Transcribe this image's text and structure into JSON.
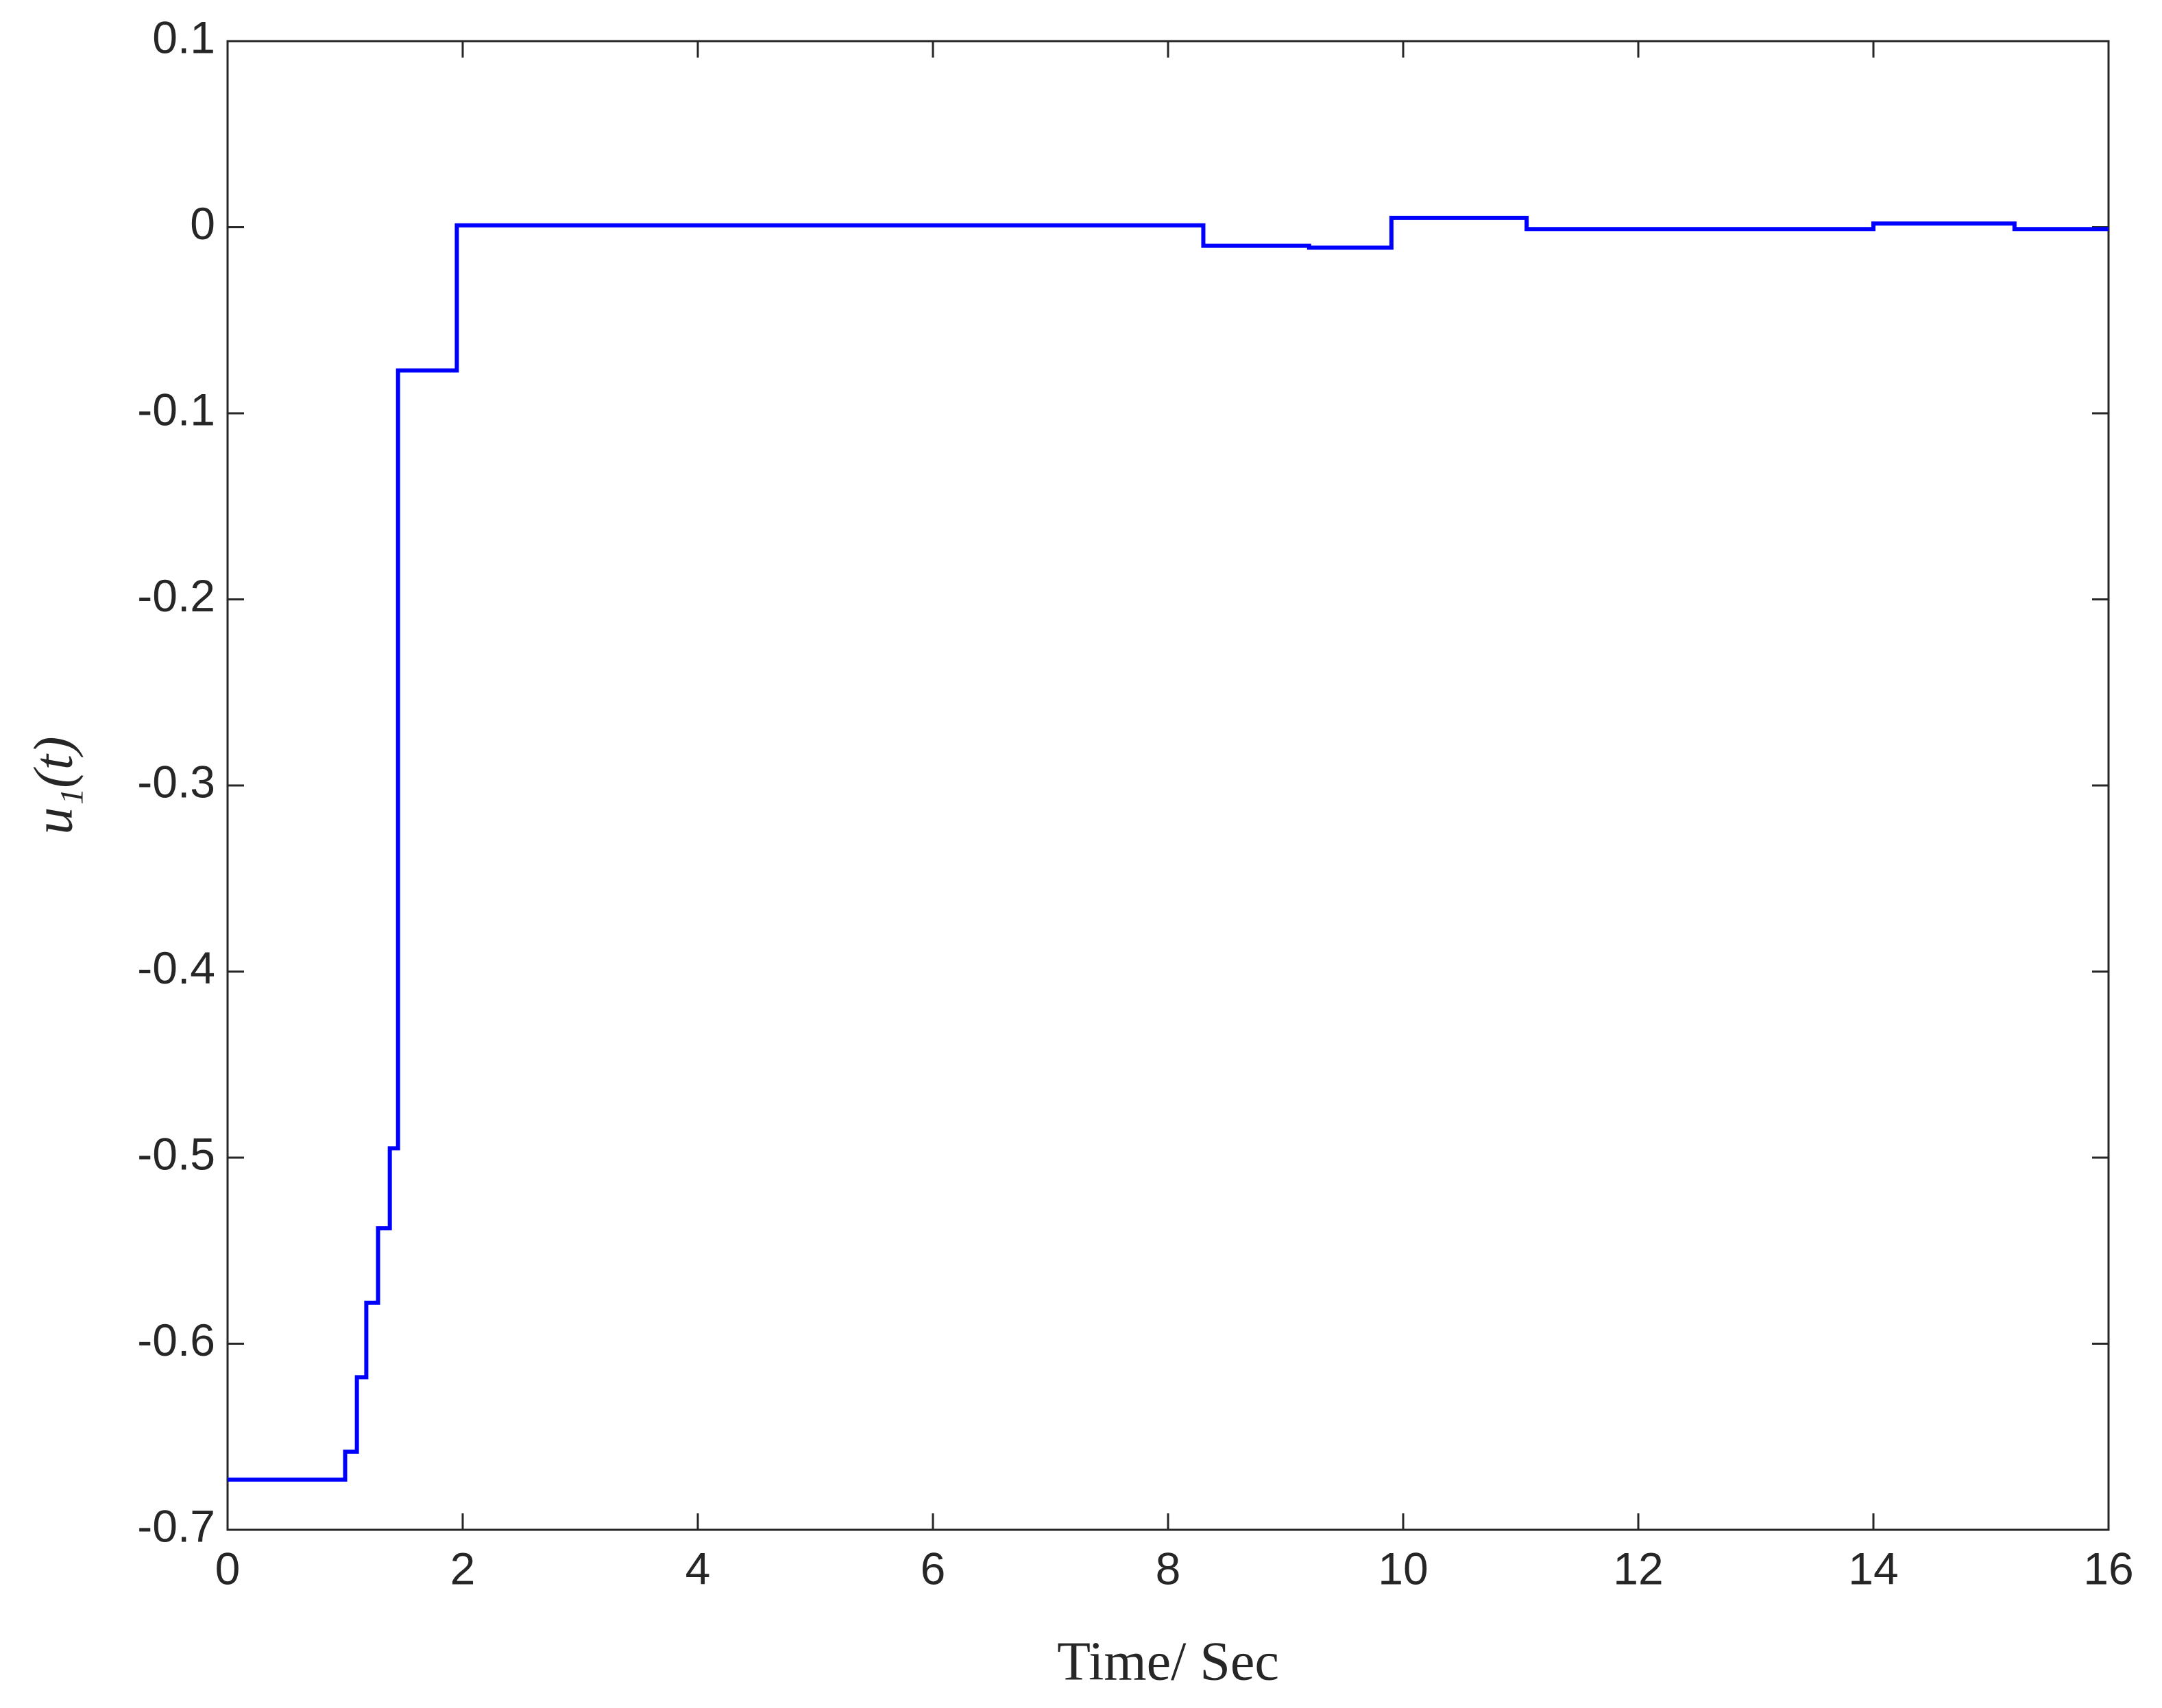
{
  "chart_data": {
    "type": "line",
    "step": true,
    "xlabel": "Time/ Sec",
    "ylabel": "u₁(t)",
    "x": [
      0,
      1.0,
      1.0,
      1.1,
      1.1,
      1.18,
      1.18,
      1.28,
      1.28,
      1.38,
      1.38,
      1.45,
      1.45,
      1.95,
      1.95,
      8.3,
      8.3,
      9.2,
      9.2,
      9.9,
      9.9,
      11.05,
      11.05,
      14.0,
      14.0,
      15.2,
      15.2,
      16
    ],
    "series": [
      {
        "color": "#0000ff",
        "values": [
          -0.673,
          -0.673,
          -0.658,
          -0.658,
          -0.618,
          -0.618,
          -0.578,
          -0.578,
          -0.538,
          -0.538,
          -0.495,
          -0.495,
          -0.077,
          -0.077,
          0.001,
          0.001,
          -0.01,
          -0.01,
          -0.011,
          -0.011,
          0.005,
          0.005,
          -0.001,
          -0.001,
          0.002,
          0.002,
          -0.001,
          -0.001
        ]
      }
    ],
    "xlim": [
      0,
      16
    ],
    "xticks": [
      0,
      2,
      4,
      6,
      8,
      10,
      12,
      14,
      16
    ],
    "ylim": [
      -0.7,
      0.1
    ],
    "yticks": [
      0.1,
      0,
      -0.1,
      -0.2,
      -0.3,
      -0.4,
      -0.5,
      -0.6,
      -0.7
    ],
    "grid": false
  }
}
